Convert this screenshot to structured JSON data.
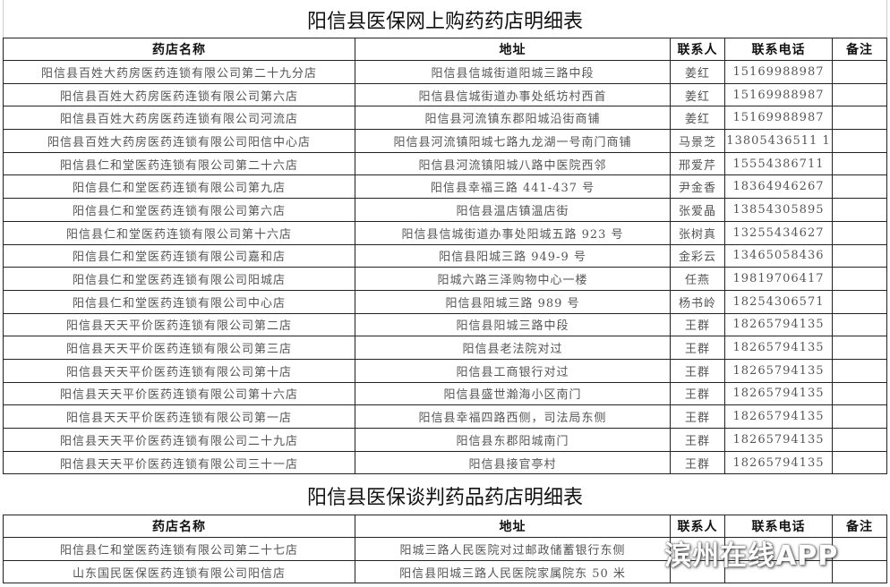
{
  "table1": {
    "title": "阳信县医保网上购药药店明细表",
    "headers": [
      "药店名称",
      "地址",
      "联系人",
      "联系电话",
      "备注"
    ],
    "rows": [
      [
        "阳信县百姓大药房医药连锁有限公司第二十九分店",
        "阳信县信城街道阳城三路中段",
        "姜红",
        "15169988987",
        ""
      ],
      [
        "阳信县百姓大药房医药连锁有限公司第六店",
        "阳信县信城街道办事处纸坊村西首",
        "姜红",
        "15169988987",
        ""
      ],
      [
        "阳信县百姓大药房医药连锁有限公司河流店",
        "阳信县河流镇东郡阳城沿街商铺",
        "姜红",
        "15169988987",
        ""
      ],
      [
        "阳信县百姓大药房医药连锁有限公司阳信中心店",
        "阳信县河流镇阳城七路九龙湖一号南门商铺",
        "马景芝",
        "13805436511 1",
        ""
      ],
      [
        "阳信县仁和堂医药连锁有限公司第二十六店",
        "阳信县河流镇阳城八路中医院西邻",
        "邢爱芹",
        "15554386711",
        ""
      ],
      [
        "阳信县仁和堂医药连锁有限公司第九店",
        "阳信县幸福三路 441-437 号",
        "尹金香",
        "18364946267",
        ""
      ],
      [
        "阳信县仁和堂医药连锁有限公司第六店",
        "阳信县温店镇温店街",
        "张爱晶",
        "13854305895",
        ""
      ],
      [
        "阳信县仁和堂医药连锁有限公司第十六店",
        "阳信县信城街道办事处阳城五路 923 号",
        "张树真",
        "13255434627",
        ""
      ],
      [
        "阳信县仁和堂医药连锁有限公司嘉和店",
        "阳信县阳城三路 949-9 号",
        "金彩云",
        "13465058436",
        ""
      ],
      [
        "阳信县仁和堂医药连锁有限公司阳城店",
        "阳城六路三泽购物中心一楼",
        "任燕",
        "19819706417",
        ""
      ],
      [
        "阳信县仁和堂医药连锁有限公司中心店",
        "阳信县阳城三路 989 号",
        "杨书岭",
        "18254306571",
        ""
      ],
      [
        "阳信县天天平价医药连锁有限公司第二店",
        "阳信县阳城三路中段",
        "王群",
        "18265794135",
        ""
      ],
      [
        "阳信县天天平价医药连锁有限公司第三店",
        "阳信县老法院对过",
        "王群",
        "18265794135",
        ""
      ],
      [
        "阳信县天天平价医药连锁有限公司第十店",
        "阳信县工商银行对过",
        "王群",
        "18265794135",
        ""
      ],
      [
        "阳信县天天平价医药连锁有限公司第十六店",
        "阳信县盛世瀚海小区南门",
        "王群",
        "18265794135",
        ""
      ],
      [
        "阳信县天天平价医药连锁有限公司第一店",
        "阳信县幸福四路西侧，司法局东侧",
        "王群",
        "18265794135",
        ""
      ],
      [
        "阳信县天天平价医药连锁有限公司二十九店",
        "阳信县东郡阳城南门",
        "王群",
        "18265794135",
        ""
      ],
      [
        "阳信县天天平价医药连锁有限公司三十一店",
        "阳信县接官亭村",
        "王群",
        "18265794135",
        ""
      ]
    ]
  },
  "table2": {
    "title": "阳信县医保谈判药品药店明细表",
    "headers": [
      "药店名称",
      "地址",
      "联系人",
      "联系电话",
      "备注"
    ],
    "rows": [
      [
        "阳信县仁和堂医药连锁有限公司第二十七店",
        "阳城三路人民医院对过邮政储蓄银行东侧",
        "",
        "",
        ""
      ],
      [
        "山东国民医保医药连锁有限公司阳信店",
        "阳信县阳城三路人民医院家属院东 50 米",
        "",
        "",
        ""
      ]
    ]
  },
  "watermark": "滨州在线APP"
}
